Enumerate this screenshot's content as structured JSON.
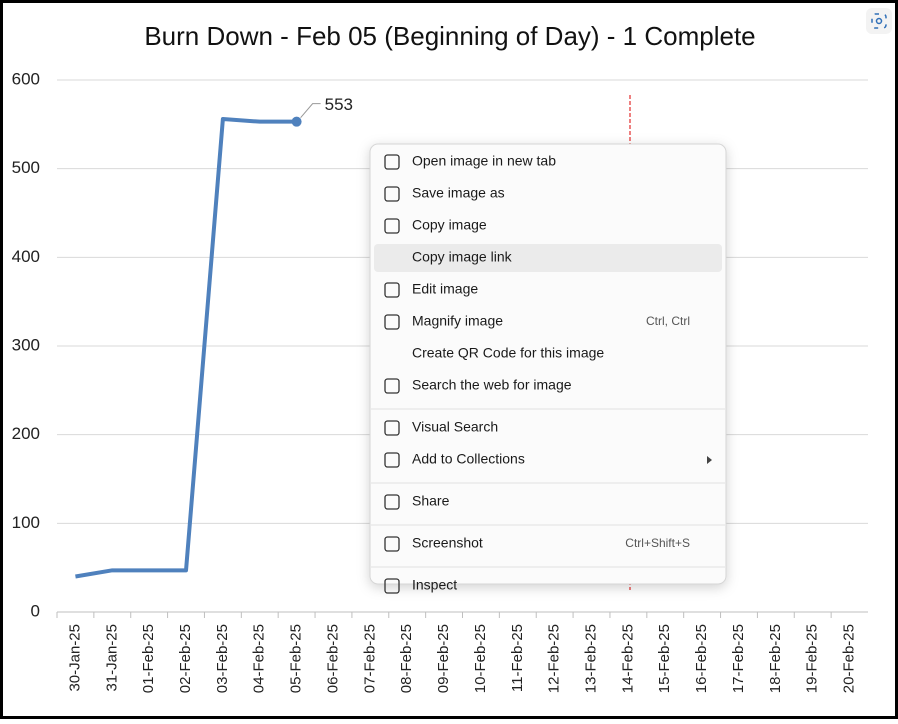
{
  "chart_data": {
    "type": "line",
    "title": "Burn Down - Feb 05 (Beginning of Day) - 1 Complete",
    "categories": [
      "30-Jan-25",
      "31-Jan-25",
      "01-Feb-25",
      "02-Feb-25",
      "03-Feb-25",
      "04-Feb-25",
      "05-Feb-25",
      "06-Feb-25",
      "07-Feb-25",
      "08-Feb-25",
      "09-Feb-25",
      "10-Feb-25",
      "11-Feb-25",
      "12-Feb-25",
      "13-Feb-25",
      "14-Feb-25",
      "15-Feb-25",
      "16-Feb-25",
      "17-Feb-25",
      "18-Feb-25",
      "19-Feb-25",
      "20-Feb-25"
    ],
    "values": [
      40,
      47,
      47,
      47,
      556,
      553,
      553,
      null,
      null,
      null,
      null,
      null,
      null,
      null,
      null,
      null,
      null,
      null,
      null,
      null,
      null,
      null
    ],
    "color": "#4f81bd",
    "ylim": [
      0,
      600
    ],
    "yticks": [
      0,
      100,
      200,
      300,
      400,
      500,
      600
    ],
    "grid": true
  },
  "context_menu": {
    "groups": [
      [
        {
          "label": "Open image in new tab"
        },
        {
          "label": "Save image as"
        },
        {
          "label": "Copy image"
        },
        {
          "label": "Copy image link",
          "hovered": true
        },
        {
          "label": "Edit image"
        },
        {
          "label": "Magnify image",
          "shortcut": "Ctrl, Ctrl"
        },
        {
          "label": "Create QR Code for this image"
        },
        {
          "label": "Search the web for image"
        }
      ],
      [
        {
          "label": "Visual Search"
        },
        {
          "label": "Add to Collections",
          "submenu": true
        }
      ],
      [
        {
          "label": "Share"
        }
      ],
      [
        {
          "label": "Screenshot",
          "shortcut": "Ctrl+Shift+S"
        }
      ],
      [
        {
          "label": "Inspect"
        }
      ]
    ]
  }
}
